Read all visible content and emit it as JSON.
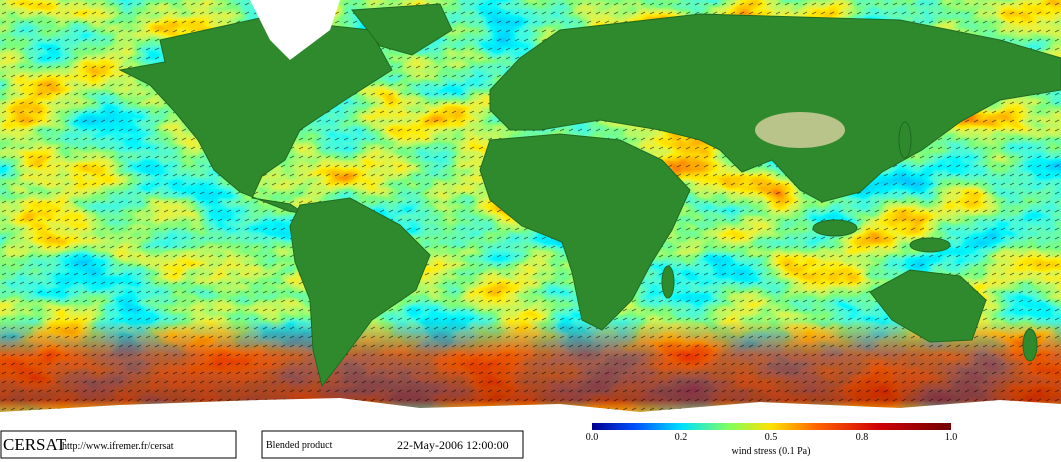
{
  "footer": {
    "logo": "CERSAT",
    "url": "http://www.ifremer.fr/cersat",
    "product": "Blended product",
    "datetime": "22-May-2006 12:00:00"
  },
  "colorbar": {
    "ticks": [
      "0.0",
      "0.2",
      "0.5",
      "0.8",
      "1.0"
    ],
    "label": "wind stress (0.1 Pa)"
  }
}
